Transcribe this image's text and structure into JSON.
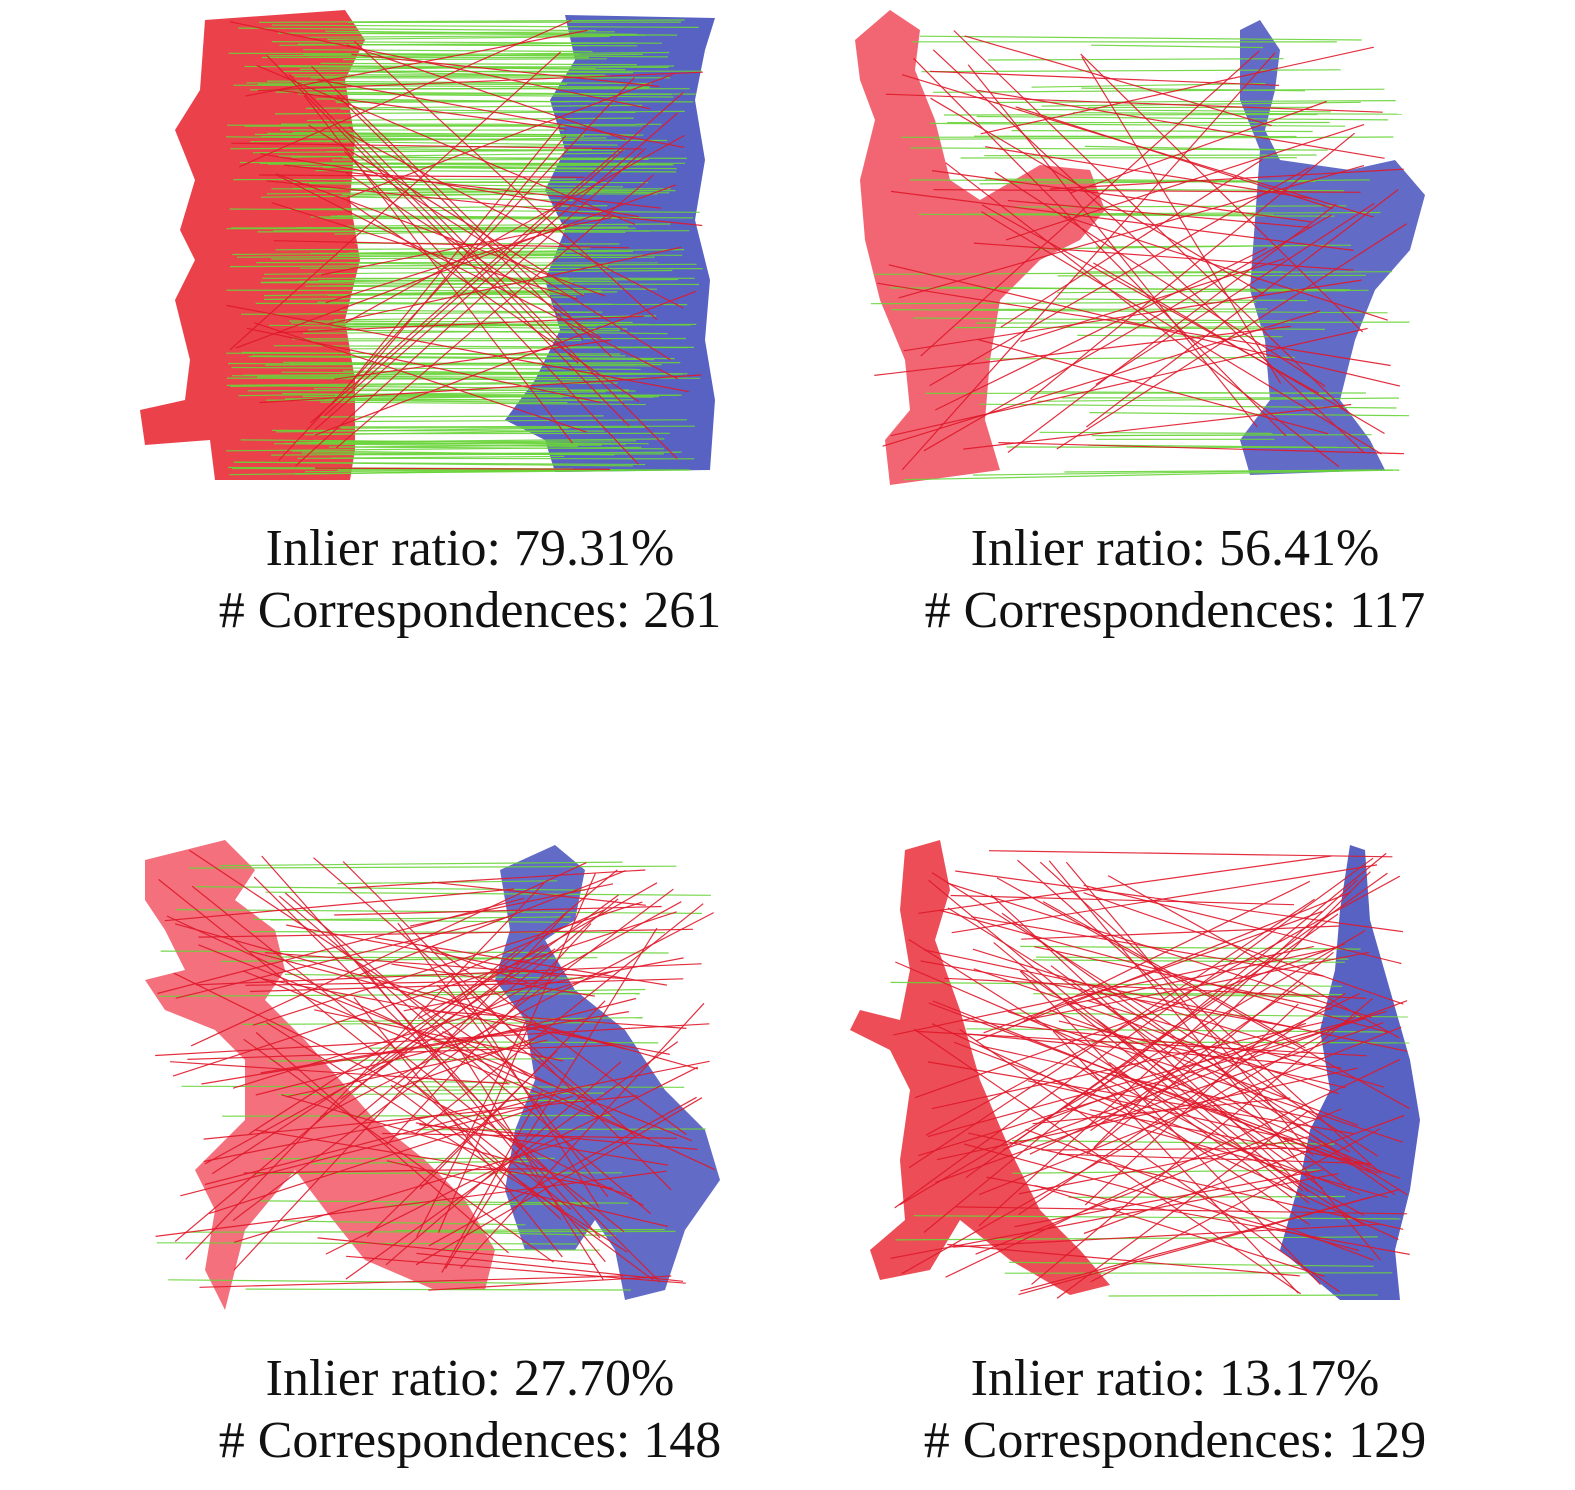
{
  "colors": {
    "source_cloud": "#e8202c",
    "target_cloud": "#3b46b8",
    "inlier_line": "#6ad43a",
    "outlier_line": "#e0182a"
  },
  "panels": [
    {
      "id": "dragon",
      "inlier_label": "Inlier ratio: 79.31%",
      "corr_label": "# Correspondences: 261",
      "inlier_ratio": 0.7931,
      "correspondences": 261
    },
    {
      "id": "rooster",
      "inlier_label": "Inlier ratio: 56.41%",
      "corr_label": "# Correspondences: 117",
      "inlier_ratio": 0.5641,
      "correspondences": 117
    },
    {
      "id": "trex",
      "inlier_label": "Inlier ratio: 27.70%",
      "corr_label": "# Correspondences: 148",
      "inlier_ratio": 0.277,
      "correspondences": 148
    },
    {
      "id": "kangaroo",
      "inlier_label": "Inlier ratio: 13.17%",
      "corr_label": "# Correspondences: 129",
      "inlier_ratio": 0.1317,
      "correspondences": 129
    }
  ]
}
